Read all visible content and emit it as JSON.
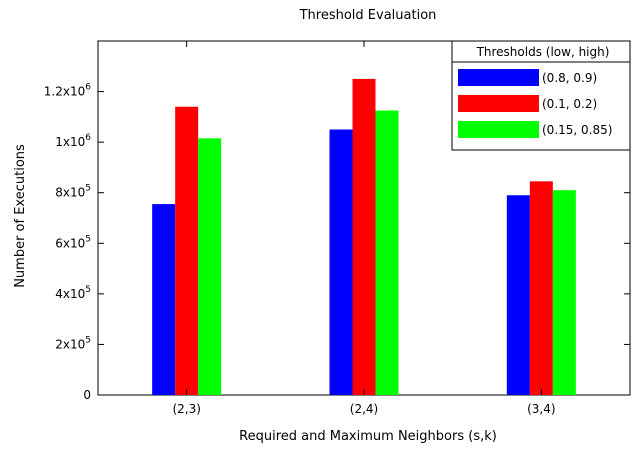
{
  "chart_data": {
    "type": "bar",
    "title": "Threshold Evaluation",
    "xlabel": "Required and Maximum Neighbors (s,k)",
    "ylabel": "Number of Executions",
    "categories": [
      "(2,3)",
      "(2,4)",
      "(3,4)"
    ],
    "series": [
      {
        "name": "(0.8, 0.9)",
        "color": "#0000ff",
        "values": [
          755000,
          1050000,
          790000
        ]
      },
      {
        "name": "(0.1, 0.2)",
        "color": "#ff0000",
        "values": [
          1140000,
          1250000,
          845000
        ]
      },
      {
        "name": "(0.15, 0.85)",
        "color": "#00ff00",
        "values": [
          1015000,
          1125000,
          810000
        ]
      }
    ],
    "yticks": [
      {
        "value": 0,
        "mantissa": "0",
        "exponent": ""
      },
      {
        "value": 200000,
        "mantissa": "2x10",
        "exponent": "5"
      },
      {
        "value": 400000,
        "mantissa": "4x10",
        "exponent": "5"
      },
      {
        "value": 600000,
        "mantissa": "6x10",
        "exponent": "5"
      },
      {
        "value": 800000,
        "mantissa": "8x10",
        "exponent": "5"
      },
      {
        "value": 1000000,
        "mantissa": "1x10",
        "exponent": "6"
      },
      {
        "value": 1200000,
        "mantissa": "1.2x10",
        "exponent": "6"
      }
    ],
    "ylim": [
      0,
      1400000
    ],
    "legend": {
      "title": "Thresholds (low, high)",
      "position": "top-right"
    },
    "grid": false
  }
}
